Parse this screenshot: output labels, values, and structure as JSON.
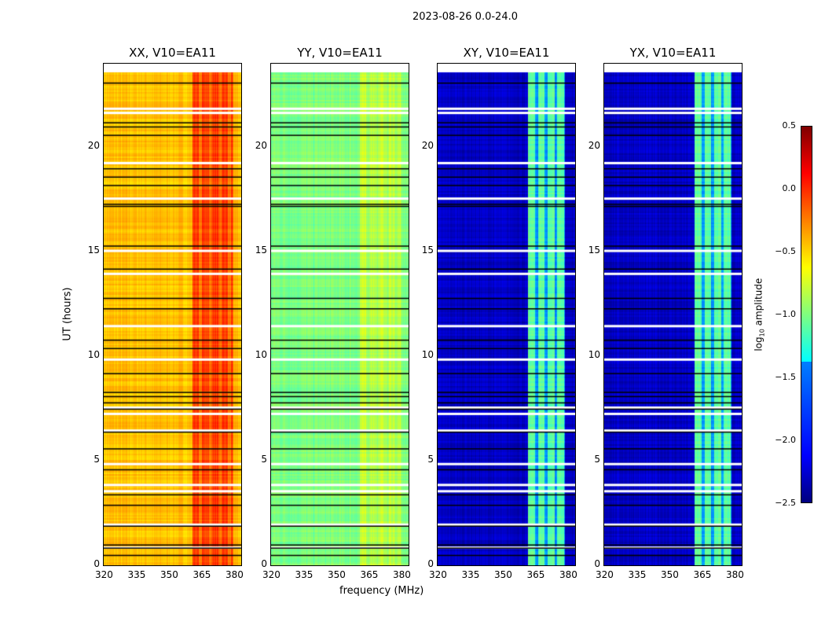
{
  "chart_data": {
    "type": "heatmap",
    "title": "2023-08-26 0.0-24.0",
    "xlabel": "frequency (MHz)",
    "ylabel": "UT (hours)",
    "xlim": [
      320,
      384
    ],
    "ylim": [
      0,
      24
    ],
    "xticks": [
      "320",
      "335",
      "350",
      "365",
      "380"
    ],
    "yticks": [
      "0",
      "5",
      "10",
      "15",
      "20"
    ],
    "colorbar": {
      "label": "log10 amplitude",
      "label_main": "log",
      "label_sub": "10",
      "label_tail": " amplitude",
      "range": [
        -2.5,
        0.5
      ],
      "ticks": [
        "0.5",
        "0.0",
        "−0.5",
        "−1.0",
        "−1.5",
        "−2.0",
        "−2.5"
      ],
      "colormap": "jet"
    },
    "panels": [
      {
        "title": "XX, V10=EA11",
        "base": -0.45,
        "band_level": -0.05,
        "band": [
          361,
          380
        ]
      },
      {
        "title": "YY, V10=EA11",
        "base": -1.0,
        "band_level": -0.8,
        "band": [
          361,
          380
        ]
      },
      {
        "title": "XY, V10=EA11",
        "base": -2.3,
        "band_level": -1.1,
        "band": [
          362,
          379
        ]
      },
      {
        "title": "YX, V10=EA11",
        "base": -2.3,
        "band_level": -1.1,
        "band": [
          362,
          379
        ]
      }
    ],
    "flag_white_hours": [
      23.7,
      21.9,
      21.7,
      19.3,
      17.6,
      15.1,
      14.0,
      11.5,
      9.9,
      7.6,
      7.3,
      6.5,
      4.9,
      3.9,
      3.6,
      2.0,
      0.9
    ],
    "flag_black_hours": [
      23.1,
      21.2,
      21.0,
      20.6,
      19.0,
      18.6,
      18.2,
      17.3,
      17.2,
      15.3,
      14.2,
      12.8,
      12.3,
      10.8,
      10.4,
      9.2,
      8.3,
      8.1,
      7.8,
      7.5,
      6.4,
      5.6,
      4.6,
      3.4,
      2.9,
      1.9,
      1.0,
      0.85,
      0.5
    ]
  }
}
